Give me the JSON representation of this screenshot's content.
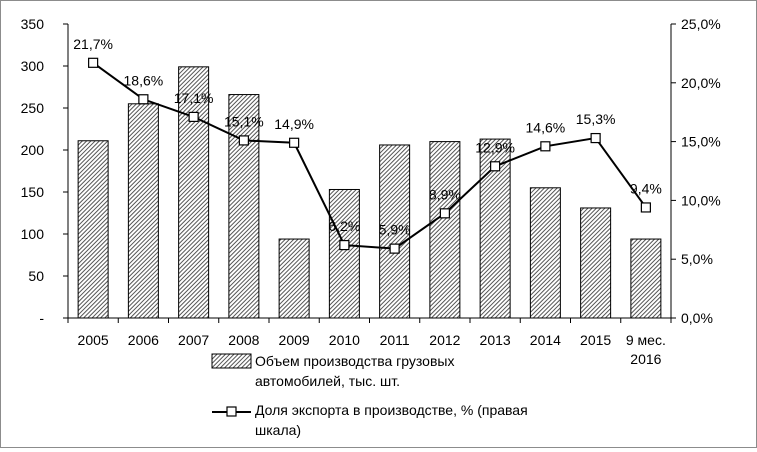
{
  "chart_data": {
    "type": "bar+line",
    "categories": [
      "2005",
      "2006",
      "2007",
      "2008",
      "2009",
      "2010",
      "2011",
      "2012",
      "2013",
      "2014",
      "2015",
      "9 мес. 2016"
    ],
    "series": [
      {
        "name": "Объем производства грузовых автомобилей, тыс. шт.",
        "type": "bar",
        "axis": "left",
        "values": [
          211,
          255,
          299,
          266,
          94,
          153,
          206,
          210,
          213,
          155,
          131,
          94
        ]
      },
      {
        "name": "Доля экспорта в производстве, % (правая шкала)",
        "type": "line",
        "axis": "right",
        "values": [
          21.7,
          18.6,
          17.1,
          15.1,
          14.9,
          6.2,
          5.9,
          8.9,
          12.9,
          14.6,
          15.3,
          9.4
        ],
        "labels": [
          "21,7%",
          "18,6%",
          "17,1%",
          "15,1%",
          "14,9%",
          "6,2%",
          "5,9%",
          "8,9%",
          "12,9%",
          "14,6%",
          "15,3%",
          "9,4%"
        ]
      }
    ],
    "y_left": {
      "range": [
        0,
        350
      ],
      "ticks": [
        0,
        50,
        100,
        150,
        200,
        250,
        300,
        350
      ],
      "tick_labels": [
        "-",
        "50",
        "100",
        "150",
        "200",
        "250",
        "300",
        "350"
      ]
    },
    "y_right": {
      "range": [
        0,
        25
      ],
      "ticks": [
        0,
        5,
        10,
        15,
        20,
        25
      ],
      "tick_labels": [
        "0,0%",
        "5,0%",
        "10,0%",
        "15,0%",
        "20,0%",
        "25,0%"
      ]
    },
    "grid": false,
    "legend": {
      "placement": "bottom",
      "bar_label_lines": [
        "Объем производства грузовых",
        "автомобилей, тыс. шт."
      ],
      "line_label_lines": [
        "Доля экспорта в производстве, % (правая",
        "шкала)"
      ]
    },
    "colors": {
      "bar_fill": "#6e6e6e",
      "bar_stroke": "#000000",
      "line": "#000000",
      "marker_fill": "#ffffff"
    }
  }
}
